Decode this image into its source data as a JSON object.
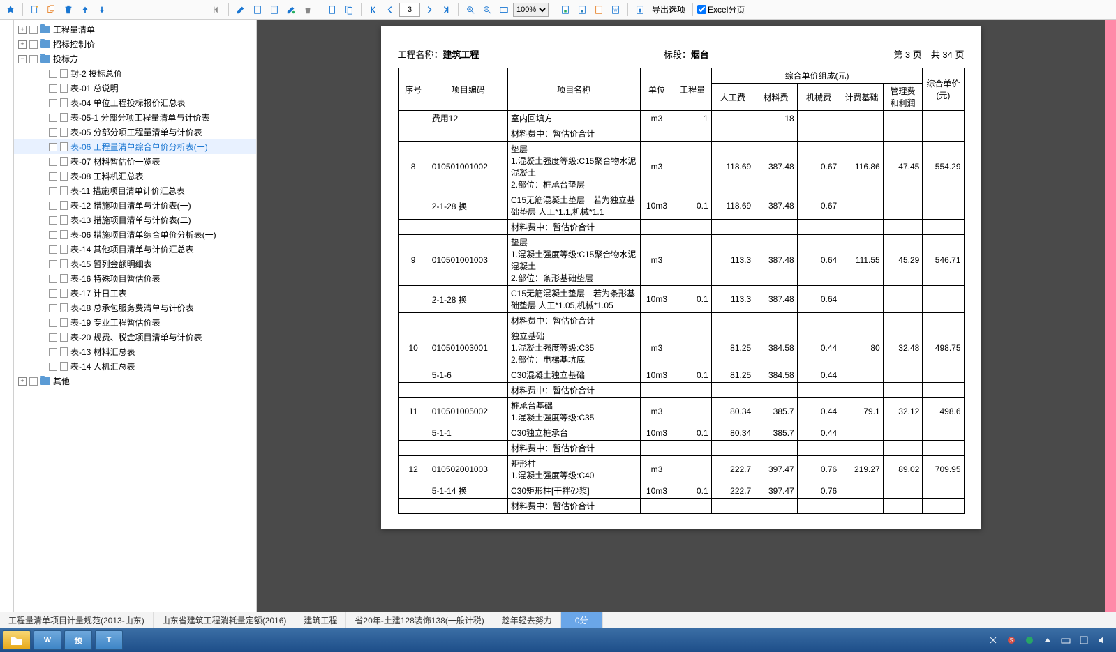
{
  "toolbar": {
    "page_input": "3",
    "zoom_value": "100%",
    "export_label": "导出选项",
    "excel_paging_label": "Excel分页"
  },
  "tree": {
    "roots": [
      {
        "label": "工程量清单",
        "expandable": true,
        "expanded": false
      },
      {
        "label": "招标控制价",
        "expandable": true,
        "expanded": false
      },
      {
        "label": "投标方",
        "expandable": true,
        "expanded": true,
        "children": [
          {
            "label": "封-2 投标总价"
          },
          {
            "label": "表-01 总说明"
          },
          {
            "label": "表-04 单位工程投标报价汇总表"
          },
          {
            "label": "表-05-1 分部分项工程量清单与计价表"
          },
          {
            "label": "表-05 分部分项工程量清单与计价表"
          },
          {
            "label": "表-06 工程量清单综合单价分析表(一)",
            "selected": true
          },
          {
            "label": "表-07 材料暂估价一览表"
          },
          {
            "label": "表-08 工料机汇总表"
          },
          {
            "label": "表-11 措施项目清单计价汇总表"
          },
          {
            "label": "表-12 措施项目清单与计价表(一)"
          },
          {
            "label": "表-13 措施项目清单与计价表(二)"
          },
          {
            "label": "表-06 措施项目清单综合单价分析表(一)"
          },
          {
            "label": "表-14 其他项目清单与计价汇总表"
          },
          {
            "label": "表-15 暂列金额明细表"
          },
          {
            "label": "表-16 特殊项目暂估价表"
          },
          {
            "label": "表-17 计日工表"
          },
          {
            "label": "表-18 总承包服务费清单与计价表"
          },
          {
            "label": "表-19 专业工程暂估价表"
          },
          {
            "label": "表-20 规费、税金项目清单与计价表"
          },
          {
            "label": "表-13 材料汇总表"
          },
          {
            "label": "表-14 人机汇总表"
          }
        ]
      },
      {
        "label": "其他",
        "expandable": true,
        "expanded": false
      }
    ]
  },
  "report": {
    "project_label": "工程名称：",
    "project_name": "建筑工程",
    "section_label": "标段：",
    "section_name": "烟台",
    "page_label_1": "第",
    "page_current": "3",
    "page_label_2": "页　共",
    "page_total": "34",
    "page_label_3": "页",
    "headers": {
      "seq": "序号",
      "code": "项目编码",
      "name": "项目名称",
      "unit": "单位",
      "qty": "工程量",
      "group": "综合单价组成(元)",
      "labor": "人工费",
      "material": "材料费",
      "machine": "机械费",
      "base": "计费基础",
      "profit": "管理费和利润",
      "price": "综合单价(元)"
    },
    "rows": [
      {
        "seq": "",
        "code": "费用12",
        "name": "室内回填方",
        "unit": "m3",
        "qty": "1",
        "labor": "",
        "material": "18",
        "machine": "",
        "base": "",
        "profit": "",
        "price": ""
      },
      {
        "name": "材料费中：暂估价合计",
        "span": true
      },
      {
        "seq": "8",
        "code": "010501001002",
        "name": "垫层\n1.混凝土强度等级:C15聚合物水泥混凝土\n2.部位：桩承台垫层",
        "unit": "m3",
        "qty": "",
        "labor": "118.69",
        "material": "387.48",
        "machine": "0.67",
        "base": "116.86",
        "profit": "47.45",
        "price": "554.29"
      },
      {
        "seq": "",
        "code": "2-1-28 换",
        "name": "C15无筋混凝土垫层　若为独立基础垫层 人工*1.1,机械*1.1",
        "unit": "10m3",
        "qty": "0.1",
        "labor": "118.69",
        "material": "387.48",
        "machine": "0.67",
        "base": "",
        "profit": "",
        "price": ""
      },
      {
        "name": "材料费中：暂估价合计",
        "span": true
      },
      {
        "seq": "9",
        "code": "010501001003",
        "name": "垫层\n1.混凝土强度等级:C15聚合物水泥混凝土\n2.部位：条形基础垫层",
        "unit": "m3",
        "qty": "",
        "labor": "113.3",
        "material": "387.48",
        "machine": "0.64",
        "base": "111.55",
        "profit": "45.29",
        "price": "546.71"
      },
      {
        "seq": "",
        "code": "2-1-28 换",
        "name": "C15无筋混凝土垫层　若为条形基础垫层 人工*1.05,机械*1.05",
        "unit": "10m3",
        "qty": "0.1",
        "labor": "113.3",
        "material": "387.48",
        "machine": "0.64",
        "base": "",
        "profit": "",
        "price": ""
      },
      {
        "name": "材料费中：暂估价合计",
        "span": true
      },
      {
        "seq": "10",
        "code": "010501003001",
        "name": "独立基础\n1.混凝土强度等级:C35\n2.部位：电梯基坑底",
        "unit": "m3",
        "qty": "",
        "labor": "81.25",
        "material": "384.58",
        "machine": "0.44",
        "base": "80",
        "profit": "32.48",
        "price": "498.75"
      },
      {
        "seq": "",
        "code": "5-1-6",
        "name": "C30混凝土独立基础",
        "unit": "10m3",
        "qty": "0.1",
        "labor": "81.25",
        "material": "384.58",
        "machine": "0.44",
        "base": "",
        "profit": "",
        "price": ""
      },
      {
        "name": "材料费中：暂估价合计",
        "span": true
      },
      {
        "seq": "11",
        "code": "010501005002",
        "name": "桩承台基础\n1.混凝土强度等级:C35",
        "unit": "m3",
        "qty": "",
        "labor": "80.34",
        "material": "385.7",
        "machine": "0.44",
        "base": "79.1",
        "profit": "32.12",
        "price": "498.6"
      },
      {
        "seq": "",
        "code": "5-1-1",
        "name": "C30独立桩承台",
        "unit": "10m3",
        "qty": "0.1",
        "labor": "80.34",
        "material": "385.7",
        "machine": "0.44",
        "base": "",
        "profit": "",
        "price": ""
      },
      {
        "name": "材料费中：暂估价合计",
        "span": true
      },
      {
        "seq": "12",
        "code": "010502001003",
        "name": "矩形柱\n1.混凝土强度等级:C40",
        "unit": "m3",
        "qty": "",
        "labor": "222.7",
        "material": "397.47",
        "machine": "0.76",
        "base": "219.27",
        "profit": "89.02",
        "price": "709.95"
      },
      {
        "seq": "",
        "code": "5-1-14 换",
        "name": "C30矩形柱[干拌砂浆]",
        "unit": "10m3",
        "qty": "0.1",
        "labor": "222.7",
        "material": "397.47",
        "machine": "0.76",
        "base": "",
        "profit": "",
        "price": ""
      },
      {
        "name": "材料费中：暂估价合计",
        "span": true
      }
    ]
  },
  "status": {
    "tabs": [
      "工程量清单项目计量规范(2013-山东)",
      "山东省建筑工程消耗量定额(2016)",
      "建筑工程",
      "省20年-土建128装饰138(一般计税)",
      "趁年轻去努力"
    ],
    "score": "0分"
  },
  "taskbar": {
    "items": [
      "📁",
      "W",
      "预",
      "T"
    ]
  }
}
